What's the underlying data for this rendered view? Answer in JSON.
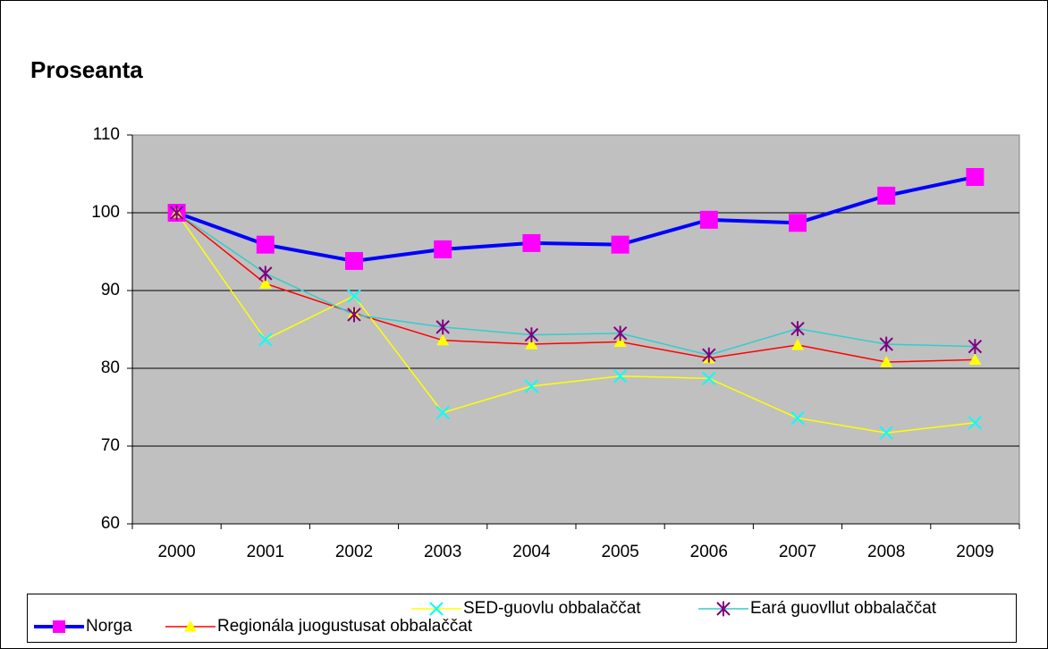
{
  "chart_data": {
    "type": "line",
    "title": "Proseanta",
    "categories": [
      "2000",
      "2001",
      "2002",
      "2003",
      "2004",
      "2005",
      "2006",
      "2007",
      "2008",
      "2009"
    ],
    "series": [
      {
        "name": "Norga",
        "color": "#0000ff",
        "marker": "square",
        "marker_color": "#ff00ff",
        "values": [
          100,
          95.9,
          93.8,
          95.3,
          96.1,
          95.9,
          99.1,
          98.7,
          102.2,
          104.6
        ]
      },
      {
        "name": "Regionála juogustusat obbalaččat",
        "color": "#ff0000",
        "marker": "triangle",
        "marker_color": "#ffff00",
        "values": [
          100,
          90.9,
          87.1,
          83.6,
          83.1,
          83.4,
          81.3,
          83.0,
          80.8,
          81.1
        ]
      },
      {
        "name": "SED-guovlu obbalaččat",
        "color": "#ffff00",
        "marker": "x",
        "marker_color": "#00ffff",
        "values": [
          100,
          83.7,
          89.3,
          74.3,
          77.7,
          79.0,
          78.7,
          73.6,
          71.7,
          73.0
        ]
      },
      {
        "name": "Eará guovllut obbalaččat",
        "color": "#33cccc",
        "marker": "star",
        "marker_color": "#800080",
        "values": [
          100,
          92.2,
          86.9,
          85.3,
          84.3,
          84.5,
          81.7,
          85.1,
          83.1,
          82.8
        ]
      }
    ],
    "ylim": [
      60,
      110
    ],
    "yticks": [
      60,
      70,
      80,
      90,
      100,
      110
    ],
    "grid": true
  }
}
